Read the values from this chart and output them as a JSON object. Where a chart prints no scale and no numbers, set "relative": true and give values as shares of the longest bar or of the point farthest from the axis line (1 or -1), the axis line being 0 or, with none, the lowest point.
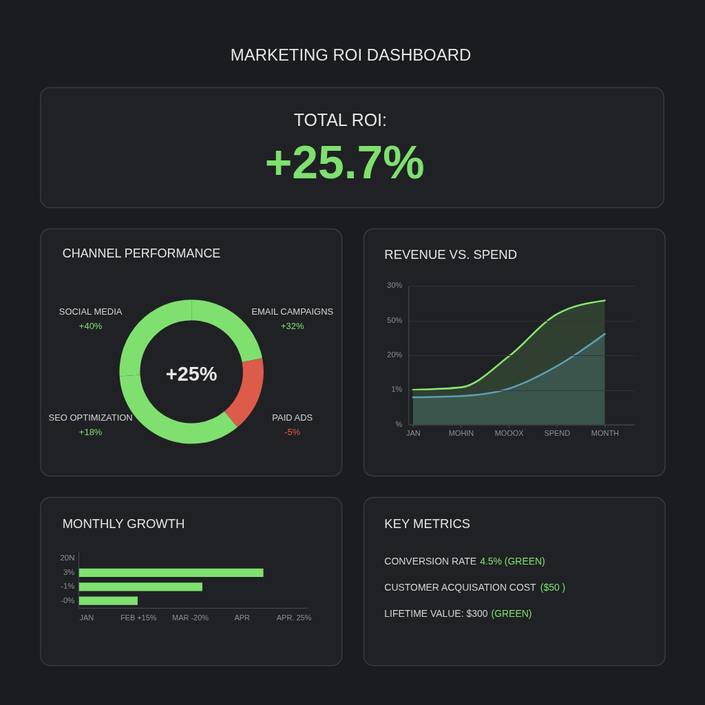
{
  "chart_data": [
    {
      "type": "other",
      "title": "MARKETING ROI DASHBOARD"
    },
    {
      "type": "other",
      "title": "TOTAL ROI:",
      "annotations": [
        "+25.7%"
      ],
      "color": "#7ee06e"
    },
    {
      "type": "donut",
      "title": "CHANNEL PERFORMANCE",
      "categories": [
        "EMAIL CAMPAIGNS",
        "PAID ADS",
        "SEO OPTIMIZATION",
        "SOCIAL MEDIA"
      ],
      "values": [
        22,
        17,
        35,
        26
      ],
      "colors": [
        "#7fe06f",
        "#dd5b4a",
        "#7fe06f",
        "#7fe06f"
      ],
      "annotations": [
        "+25%",
        {
          "text": "+32%",
          "x": "EMAIL CAMPAIGNS"
        },
        {
          "text": "-5%",
          "x": "PAID ADS"
        },
        {
          "text": "+18%",
          "x": "SEO OPTIMIZATION"
        },
        {
          "text": "+40%",
          "x": "SOCIAL MEDIA"
        }
      ]
    },
    {
      "type": "area",
      "title": "REVENUE VS. SPEND",
      "relative": true,
      "categories": [
        "JAN",
        "MOHIN",
        "MOOOX",
        "SPEND",
        "MONTH"
      ],
      "series": [
        {
          "color": "#86e56f",
          "values": [
            0.28,
            0.3,
            0.55,
            0.89,
            1.0
          ]
        },
        {
          "color": "#5e9fb2",
          "values": [
            0.22,
            0.23,
            0.29,
            0.47,
            0.73
          ]
        }
      ],
      "annotations": [
        "30%",
        "50%",
        "20%",
        "1%",
        "%"
      ],
      "grid": "y"
    },
    {
      "type": "bar",
      "orientation": "horizontal",
      "title": "MONTHLY GROWTH",
      "relative": true,
      "categories": [
        "20N",
        "3%",
        "-1%",
        "-0%"
      ],
      "values": [
        null,
        1.0,
        0.67,
        0.32
      ],
      "color": "#7fe06f",
      "annotations": [
        "JAN",
        "FEB +15%",
        "MAR -20%",
        "APR",
        "APR. 25%"
      ]
    },
    {
      "type": "other",
      "title": "KEY METRICS",
      "categories": [
        "CONVERSION RATE",
        "CUSTOMER ACQUISATION COST",
        "LIFETIME VALUE: $300"
      ],
      "value_labels": [
        "4.5% (GREEN)",
        "($50 )",
        "(GREEN)"
      ],
      "color": "#7fe06f"
    }
  ]
}
